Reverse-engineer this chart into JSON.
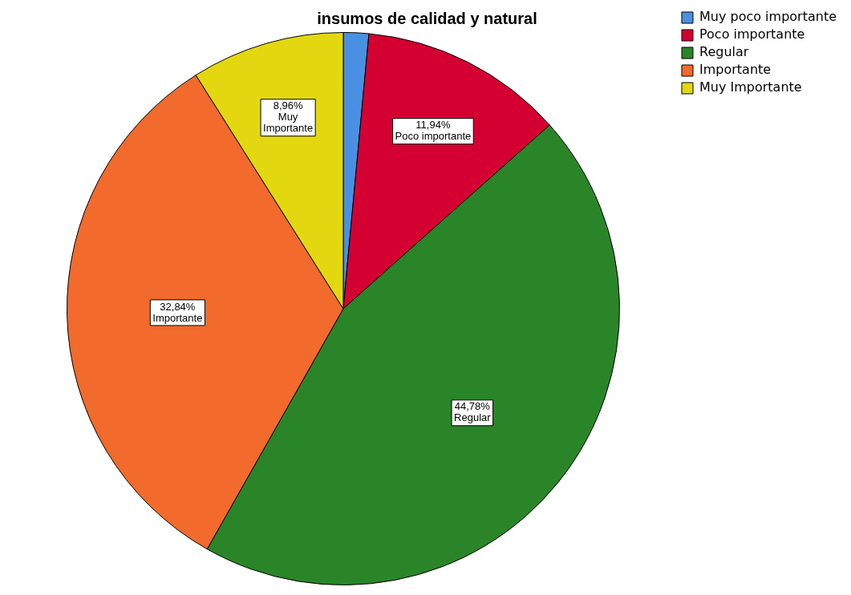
{
  "chart_data": {
    "type": "pie",
    "title": "insumos de calidad y natural",
    "categories": [
      "Muy poco importante",
      "Poco importante",
      "Regular",
      "Importante",
      "Muy Importante"
    ],
    "values": [
      1.48,
      11.94,
      44.78,
      32.84,
      8.96
    ],
    "colors": [
      "#4a90e2",
      "#d40032",
      "#2a8529",
      "#f26a2c",
      "#e3d80f"
    ],
    "value_labels": [
      null,
      "11,94%",
      "44,78%",
      "32,84%",
      "8,96%"
    ],
    "legend": "top right"
  }
}
